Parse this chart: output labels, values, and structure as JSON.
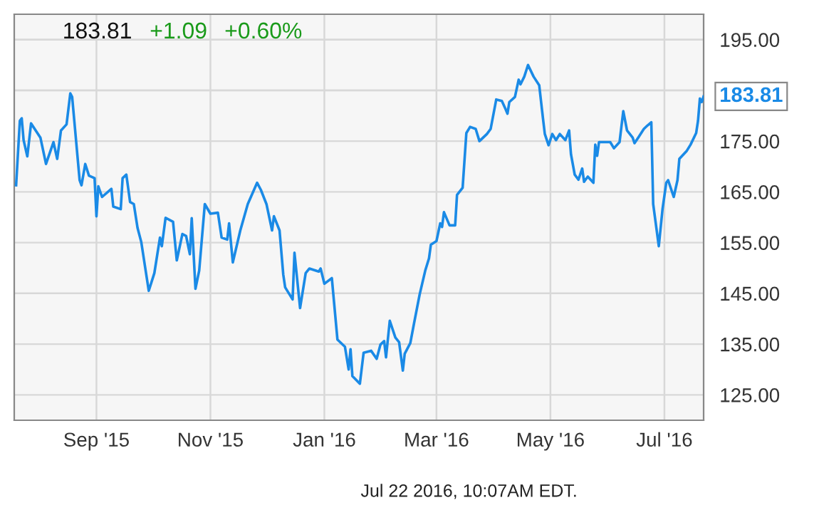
{
  "chart_data": {
    "type": "line",
    "x": [
      "2015-07-20",
      "2015-07-22",
      "2015-07-23",
      "2015-07-24",
      "2015-07-26",
      "2015-07-28",
      "2015-08-02",
      "2015-08-05",
      "2015-08-09",
      "2015-08-11",
      "2015-08-13",
      "2015-08-16",
      "2015-08-18",
      "2015-08-19",
      "2015-08-23",
      "2015-08-24",
      "2015-08-26",
      "2015-08-28",
      "2015-08-31",
      "2015-09-01",
      "2015-09-02",
      "2015-09-04",
      "2015-09-09",
      "2015-09-10",
      "2015-09-14",
      "2015-09-15",
      "2015-09-17",
      "2015-09-19",
      "2015-09-21",
      "2015-09-23",
      "2015-09-25",
      "2015-09-29",
      "2015-10-02",
      "2015-10-05",
      "2015-10-06",
      "2015-10-08",
      "2015-10-12",
      "2015-10-14",
      "2015-10-17",
      "2015-10-19",
      "2015-10-21",
      "2015-10-22",
      "2015-10-24",
      "2015-10-26",
      "2015-10-29",
      "2015-11-01",
      "2015-11-05",
      "2015-11-07",
      "2015-11-10",
      "2015-11-11",
      "2015-11-13",
      "2015-11-17",
      "2015-11-21",
      "2015-11-26",
      "2015-11-28",
      "2015-12-01",
      "2015-12-04",
      "2015-12-05",
      "2015-12-08",
      "2015-12-10",
      "2015-12-11",
      "2015-12-15",
      "2015-12-16",
      "2015-12-19",
      "2015-12-22",
      "2015-12-24",
      "2015-12-29",
      "2015-12-30",
      "2016-01-01",
      "2016-01-05",
      "2016-01-08",
      "2016-01-12",
      "2016-01-14",
      "2016-01-15",
      "2016-01-16",
      "2016-01-20",
      "2016-01-22",
      "2016-01-26",
      "2016-01-29",
      "2016-01-31",
      "2016-02-02",
      "2016-02-03",
      "2016-02-05",
      "2016-02-08",
      "2016-02-10",
      "2016-02-12",
      "2016-02-13",
      "2016-02-16",
      "2016-02-18",
      "2016-02-21",
      "2016-02-24",
      "2016-02-26",
      "2016-02-27",
      "2016-03-01",
      "2016-03-03",
      "2016-03-04",
      "2016-03-05",
      "2016-03-08",
      "2016-03-11",
      "2016-03-12",
      "2016-03-15",
      "2016-03-17",
      "2016-03-19",
      "2016-03-22",
      "2016-03-24",
      "2016-03-28",
      "2016-03-30",
      "2016-04-02",
      "2016-04-05",
      "2016-04-07",
      "2016-04-08",
      "2016-04-09",
      "2016-04-12",
      "2016-04-14",
      "2016-04-15",
      "2016-04-17",
      "2016-04-19",
      "2016-04-22",
      "2016-04-25",
      "2016-04-27",
      "2016-04-28",
      "2016-04-30",
      "2016-05-02",
      "2016-05-04",
      "2016-05-06",
      "2016-05-09",
      "2016-05-11",
      "2016-05-12",
      "2016-05-14",
      "2016-05-16",
      "2016-05-18",
      "2016-05-19",
      "2016-05-21",
      "2016-05-24",
      "2016-05-25",
      "2016-05-26",
      "2016-05-27",
      "2016-06-02",
      "2016-06-04",
      "2016-06-07",
      "2016-06-09",
      "2016-06-11",
      "2016-06-14",
      "2016-06-15",
      "2016-06-17",
      "2016-06-20",
      "2016-06-22",
      "2016-06-24",
      "2016-06-25",
      "2016-06-28",
      "2016-06-30",
      "2016-07-02",
      "2016-07-03",
      "2016-07-06",
      "2016-07-08",
      "2016-07-09",
      "2016-07-13",
      "2016-07-15",
      "2016-07-18",
      "2016-07-19",
      "2016-07-20",
      "2016-07-21",
      "2016-07-22"
    ],
    "series": [
      {
        "color": "#1a8ae6",
        "values": [
          166.3,
          179,
          179.5,
          175.2,
          172,
          178.5,
          175.7,
          170.5,
          174.8,
          171.5,
          177.1,
          178.3,
          184.4,
          183.7,
          167.3,
          166.3,
          170.5,
          168.2,
          167.7,
          160.2,
          166.1,
          164,
          165.6,
          162.1,
          161.6,
          167.7,
          168.4,
          163,
          162.6,
          157.9,
          155.1,
          145.5,
          149,
          156,
          154.3,
          159.9,
          159.1,
          151.5,
          156.7,
          156.3,
          152.7,
          159.8,
          145.9,
          149.5,
          162.6,
          160.7,
          160.9,
          156,
          155.6,
          158.8,
          151.1,
          157.4,
          162.6,
          166.8,
          165.4,
          162.6,
          157.4,
          160.2,
          157.4,
          148.7,
          146.2,
          143.8,
          153,
          142.1,
          149,
          149.9,
          149.3,
          149.9,
          146.9,
          148,
          135.9,
          134.5,
          130,
          134,
          128.7,
          127.2,
          133.3,
          133.7,
          132.1,
          134.9,
          135.6,
          132.4,
          139.6,
          136.3,
          135.4,
          129.8,
          133.1,
          135.2,
          139.1,
          144.8,
          149.5,
          151.9,
          154.6,
          155.3,
          158.8,
          158.1,
          161,
          158.4,
          158.4,
          164.4,
          165.8,
          176.6,
          177.8,
          177.4,
          175,
          176.4,
          177.4,
          183.2,
          182.9,
          181.3,
          180.4,
          182.7,
          183.7,
          187.1,
          186.2,
          187.7,
          190,
          187.7,
          186,
          179.5,
          176.4,
          174.2,
          176.4,
          175.2,
          176.4,
          175.2,
          177.1,
          172.4,
          168.4,
          167.4,
          169.6,
          167,
          168,
          166.8,
          174.3,
          172.1,
          174.8,
          174.8,
          173.6,
          174.8,
          180.9,
          177.1,
          175.7,
          174.6,
          175.7,
          177.4,
          178.1,
          178.7,
          162.6,
          154.3,
          161.6,
          166.8,
          167.3,
          164,
          167.3,
          171.5,
          173.1,
          174.3,
          176.6,
          179,
          183.4,
          182.7,
          183.81
        ]
      }
    ],
    "xlim": [
      "2015-07-19",
      "2016-07-22"
    ],
    "xticks": [
      {
        "value": "2015-09-01",
        "label": "Sep '15"
      },
      {
        "value": "2015-11-01",
        "label": "Nov '15"
      },
      {
        "value": "2016-01-01",
        "label": "Jan '16"
      },
      {
        "value": "2016-03-01",
        "label": "Mar '16"
      },
      {
        "value": "2016-05-01",
        "label": "May '16"
      },
      {
        "value": "2016-07-01",
        "label": "Jul '16"
      }
    ],
    "ylim": [
      120,
      200
    ],
    "yticks": [
      {
        "value": 125,
        "label": "125.00"
      },
      {
        "value": 135,
        "label": "135.00"
      },
      {
        "value": 145,
        "label": "145.00"
      },
      {
        "value": 155,
        "label": "155.00"
      },
      {
        "value": 165,
        "label": "165.00"
      },
      {
        "value": 175,
        "label": "175.00"
      },
      {
        "value": 185,
        "label": null
      },
      {
        "value": 195,
        "label": "195.00"
      }
    ],
    "grid": true,
    "marker": "none",
    "line_style": "solid",
    "annotations": [
      "183.81",
      "+1.09",
      "+0.60%",
      {
        "text": "183.81",
        "x": "2016-07-22",
        "y": 183.81
      },
      "Jul 22 2016, 10:07AM EDT."
    ]
  }
}
